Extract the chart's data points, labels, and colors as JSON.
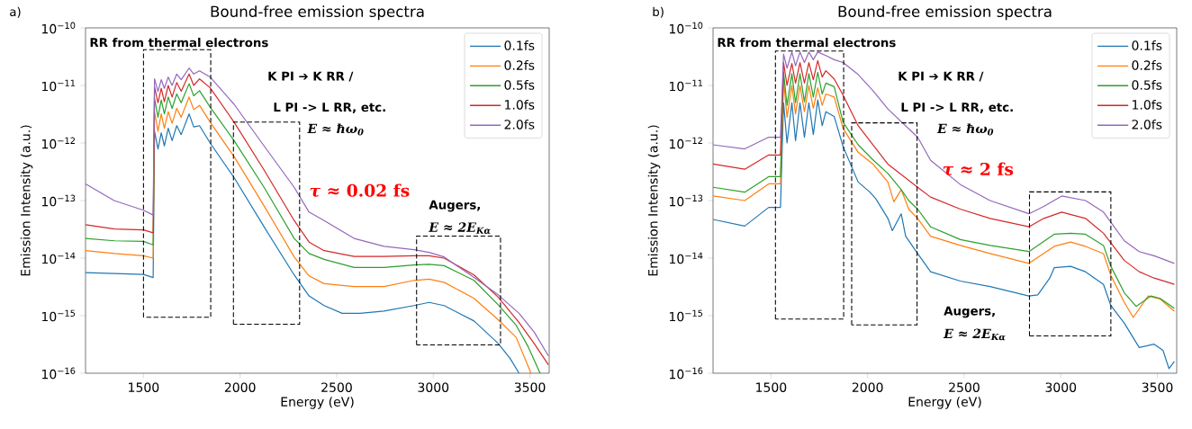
{
  "chart_data": [
    {
      "type": "line",
      "title": "Bound-free emission spectra",
      "xlabel": "Energy (eV)",
      "ylabel": "Emission Intensity (a.u.)",
      "log": true,
      "legend": "top right",
      "xlim": [
        1200,
        3600
      ],
      "xticks": [
        1500,
        2000,
        2500,
        3000,
        3500
      ],
      "ylim": [
        1e-16,
        1e-10
      ],
      "yticks": [
        {
          "value": 1e-16,
          "label": "10$^{−16}$"
        },
        {
          "value": 1e-15,
          "label": "10$^{−15}$"
        },
        {
          "value": 1e-14,
          "label": "10$^{−14}$"
        },
        {
          "value": 1e-13,
          "label": "10$^{−13}$"
        },
        {
          "value": 1e-12,
          "label": "10$^{−12}$"
        },
        {
          "value": 1e-11,
          "label": "10$^{−11}$"
        },
        {
          "value": 1e-10,
          "label": "10$^{−10}$"
        }
      ],
      "annotations": [
        "a)",
        "RR from thermal electrons",
        "K PI ➔ K RR /",
        "L PI -> L RR, etc.",
        "E ≈ ħω$_{0}$",
        "*τ* ≈ 0.02 fs",
        "Augers,",
        "E ≈ 2E$_{Kα}$"
      ],
      "series": [
        {
          "name": "0.1fs",
          "color": "#1f77b4",
          "x": [
            1200,
            1350,
            1500,
            1550,
            1557,
            1575,
            1592,
            1608,
            1628,
            1648,
            1672,
            1695,
            1736,
            1760,
            1790,
            1845,
            1969,
            2124,
            2280,
            2357,
            2435,
            2528,
            2621,
            2745,
            2900,
            2978,
            3056,
            3211,
            3336,
            3398,
            3444
          ],
          "values": [
            5.6e-15,
            5.4e-15,
            5.2e-15,
            4.6e-15,
            1.6e-12,
            7.9e-13,
            1.5e-12,
            8.9e-13,
            1.8e-12,
            1.1e-12,
            2e-12,
            1.4e-12,
            3.2e-12,
            1.9e-12,
            2e-12,
            1e-12,
            2.5e-13,
            3.5e-14,
            5.1e-15,
            2.2e-15,
            1.5e-15,
            1.1e-15,
            1.1e-15,
            1.2e-15,
            1.5e-15,
            1.7e-15,
            1.5e-15,
            8.1e-16,
            3.3e-16,
            1.8e-16,
            1e-16
          ]
        },
        {
          "name": "0.2fs",
          "color": "#ff7f0e",
          "x": [
            1200,
            1350,
            1500,
            1550,
            1557,
            1575,
            1592,
            1608,
            1628,
            1648,
            1672,
            1695,
            1736,
            1760,
            1790,
            1845,
            1969,
            2124,
            2280,
            2357,
            2435,
            2590,
            2745,
            2900,
            2978,
            3056,
            3211,
            3336,
            3429,
            3506
          ],
          "values": [
            1.35e-14,
            1.2e-14,
            1.1e-14,
            1e-14,
            3.5e-12,
            1.6e-12,
            3.2e-12,
            1.8e-12,
            3.5e-12,
            2.2e-12,
            4e-12,
            2.8e-12,
            6.3e-12,
            3.8e-12,
            4.5e-12,
            2.3e-12,
            5.8e-13,
            8.1e-14,
            1.05e-14,
            4.9e-15,
            3.6e-15,
            3.2e-15,
            3.2e-15,
            4.1e-15,
            4.3e-15,
            3.8e-15,
            2e-15,
            8.5e-16,
            4.2e-16,
            1e-16
          ]
        },
        {
          "name": "0.5fs",
          "color": "#2ca02c",
          "x": [
            1200,
            1350,
            1500,
            1550,
            1557,
            1575,
            1592,
            1608,
            1628,
            1648,
            1672,
            1695,
            1736,
            1760,
            1790,
            1845,
            1969,
            2124,
            2280,
            2357,
            2435,
            2590,
            2745,
            2900,
            2978,
            3056,
            3211,
            3336,
            3429,
            3491,
            3553
          ],
          "values": [
            2.2e-14,
            2e-14,
            1.95e-14,
            1.7e-14,
            6e-12,
            2.8e-12,
            5.6e-12,
            3.2e-12,
            6.3e-12,
            4e-12,
            7.1e-12,
            5e-12,
            1.07e-11,
            6.6e-12,
            8.1e-12,
            4.2e-12,
            1.1e-12,
            1.7e-13,
            2.2e-14,
            1.2e-14,
            9.5e-15,
            6.9e-15,
            6.9e-15,
            7.6e-15,
            7.8e-15,
            7.4e-15,
            4.1e-15,
            1.55e-15,
            6.8e-16,
            2.9e-16,
            1e-16
          ]
        },
        {
          "name": "1.0fs",
          "color": "#d62728",
          "x": [
            1200,
            1350,
            1500,
            1550,
            1557,
            1575,
            1592,
            1608,
            1628,
            1648,
            1672,
            1695,
            1736,
            1760,
            1790,
            1845,
            1969,
            2124,
            2280,
            2357,
            2435,
            2590,
            2745,
            2900,
            2978,
            3056,
            3211,
            3336,
            3444,
            3522,
            3596
          ],
          "values": [
            3.8e-14,
            3.2e-14,
            3.1e-14,
            2.75e-14,
            9.5e-12,
            5e-12,
            8.9e-12,
            5.2e-12,
            1e-11,
            6.3e-12,
            1.12e-11,
            7.9e-12,
            1.58e-11,
            1e-11,
            1.3e-11,
            9.1e-12,
            2.3e-12,
            3.4e-13,
            4.5e-14,
            1.9e-14,
            1.35e-14,
            1.07e-14,
            1.07e-14,
            1.1e-14,
            1.1e-14,
            1e-14,
            5.1e-15,
            2.1e-15,
            7.6e-16,
            3.3e-16,
            1.4e-16
          ]
        },
        {
          "name": "2.0fs",
          "color": "#9467bd",
          "x": [
            1200,
            1348,
            1500,
            1550,
            1557,
            1575,
            1592,
            1608,
            1628,
            1648,
            1672,
            1695,
            1736,
            1760,
            1790,
            1845,
            1969,
            2124,
            2280,
            2357,
            2435,
            2590,
            2745,
            2900,
            2978,
            3056,
            3211,
            3336,
            3444,
            3522,
            3596
          ],
          "values": [
            1.95e-13,
            1e-13,
            6.8e-14,
            5.6e-14,
            1.3e-11,
            7.9e-12,
            1.26e-11,
            8.9e-12,
            1.4e-11,
            1e-11,
            1.58e-11,
            1.26e-11,
            2e-11,
            1.58e-11,
            1.8e-11,
            1.4e-11,
            4.7e-12,
            8.9e-13,
            1.7e-13,
            6.3e-14,
            4.5e-14,
            2.2e-14,
            1.6e-14,
            1.4e-14,
            1.26e-14,
            1.05e-14,
            4.6e-15,
            2.3e-15,
            1.1e-15,
            5.2e-16,
            2e-16
          ]
        }
      ]
    },
    {
      "type": "line",
      "title": "Bound-free emission spectra",
      "xlabel": "Energy (eV)",
      "ylabel": "Emission Intensity (a.u.)",
      "log": true,
      "legend": "top right",
      "xlim": [
        1200,
        3600
      ],
      "xticks": [
        1500,
        2000,
        2500,
        3000,
        3500
      ],
      "ylim": [
        1e-16,
        1e-10
      ],
      "yticks": [
        {
          "value": 1e-16,
          "label": "10$^{−16}$"
        },
        {
          "value": 1e-15,
          "label": "10$^{−15}$"
        },
        {
          "value": 1e-14,
          "label": "10$^{−14}$"
        },
        {
          "value": 1e-13,
          "label": "10$^{−13}$"
        },
        {
          "value": 1e-12,
          "label": "10$^{−12}$"
        },
        {
          "value": 1e-11,
          "label": "10$^{−11}$"
        },
        {
          "value": 1e-10,
          "label": "10$^{−10}$"
        }
      ],
      "annotations": [
        "b)",
        "RR from thermal electrons",
        "K PI ➔ K RR /",
        "L PI -> L RR, etc.",
        "E ≈ ħω$_{0}$",
        "*τ* ≈ 2 fs",
        "Augers,",
        "E ≈ 2E$_{Kα}$"
      ],
      "series": [
        {
          "name": "0.1fs",
          "color": "#1f77b4",
          "x": [
            1200,
            1364,
            1488,
            1549,
            1565,
            1583,
            1608,
            1627,
            1650,
            1673,
            1696,
            1719,
            1742,
            1765,
            1784,
            1827,
            1873,
            1951,
            2012,
            2043,
            2105,
            2128,
            2174,
            2197,
            2259,
            2326,
            2480,
            2634,
            2835,
            2881,
            2943,
            2966,
            3051,
            3128,
            3221,
            3259,
            3329,
            3406,
            3483,
            3529,
            3560,
            3588
          ],
          "values": [
            4.7e-14,
            3.6e-14,
            7.6e-14,
            7.6e-14,
            5e-12,
            1e-12,
            5e-12,
            1.1e-12,
            5e-12,
            1.26e-12,
            5e-12,
            1.4e-12,
            5.6e-12,
            2e-12,
            3.5e-12,
            2.9e-12,
            8.7e-13,
            2.1e-13,
            1.4e-13,
            1.07e-13,
            4.9e-14,
            3e-14,
            5.9e-14,
            2.4e-14,
            1.2e-14,
            5.8e-15,
            4e-15,
            3.2e-15,
            2.2e-15,
            2.3e-15,
            4.5e-15,
            6.8e-15,
            7.2e-15,
            5.8e-15,
            3.5e-15,
            1.5e-15,
            7.4e-16,
            2.8e-16,
            3.2e-16,
            2.5e-16,
            1.2e-16,
            1.6e-16
          ]
        },
        {
          "name": "0.2fs",
          "color": "#ff7f0e",
          "x": [
            1200,
            1364,
            1488,
            1549,
            1565,
            1583,
            1608,
            1627,
            1650,
            1673,
            1696,
            1719,
            1742,
            1765,
            1784,
            1827,
            1873,
            1951,
            2028,
            2105,
            2136,
            2174,
            2213,
            2259,
            2326,
            2480,
            2634,
            2835,
            2966,
            3051,
            3128,
            3221,
            3259,
            3329,
            3375,
            3452,
            3514,
            3588
          ],
          "values": [
            1.2e-13,
            1e-13,
            1.95e-13,
            1.95e-13,
            1.23e-11,
            2.8e-12,
            1e-11,
            3.2e-12,
            1e-11,
            3.5e-12,
            1e-11,
            4e-12,
            9.1e-12,
            4.5e-12,
            7.1e-12,
            6.3e-12,
            1.8e-12,
            6.9e-13,
            4.3e-13,
            2.1e-13,
            9.5e-14,
            1.55e-13,
            7.1e-14,
            4.9e-14,
            2.4e-14,
            1.66e-14,
            1.2e-14,
            8.1e-15,
            1.6e-14,
            1.9e-14,
            1.6e-14,
            1.2e-14,
            5e-15,
            1.7e-15,
            9.3e-16,
            2.2e-15,
            1.95e-15,
            1.2e-15
          ]
        },
        {
          "name": "0.5fs",
          "color": "#2ca02c",
          "x": [
            1200,
            1364,
            1488,
            1549,
            1565,
            1583,
            1608,
            1627,
            1650,
            1673,
            1696,
            1719,
            1742,
            1765,
            1784,
            1827,
            1873,
            1951,
            2028,
            2105,
            2174,
            2213,
            2259,
            2326,
            2480,
            2634,
            2835,
            2966,
            3051,
            3128,
            3221,
            3259,
            3329,
            3390,
            3467,
            3514,
            3588
          ],
          "values": [
            1.7e-13,
            1.4e-13,
            2.6e-13,
            2.6e-13,
            1.7e-11,
            4.5e-12,
            1.6e-11,
            5e-12,
            1.6e-11,
            5.2e-12,
            1.6e-11,
            6.3e-12,
            1.7e-11,
            7.1e-12,
            1.1e-11,
            9.5e-12,
            2.3e-12,
            9.3e-13,
            5.1e-13,
            2.95e-13,
            1.55e-13,
            1e-13,
            7.1e-14,
            3.5e-14,
            2.1e-14,
            1.66e-14,
            1.3e-14,
            2.6e-14,
            2.7e-14,
            2.6e-14,
            1.66e-14,
            7.2e-15,
            2.5e-15,
            1.45e-15,
            2.2e-15,
            2e-15,
            1.35e-15
          ]
        },
        {
          "name": "1.0fs",
          "color": "#d62728",
          "x": [
            1200,
            1364,
            1488,
            1549,
            1565,
            1583,
            1608,
            1627,
            1650,
            1673,
            1696,
            1719,
            1742,
            1765,
            1784,
            1827,
            1873,
            1951,
            2028,
            2105,
            2259,
            2326,
            2480,
            2634,
            2835,
            2912,
            3005,
            3128,
            3221,
            3329,
            3406,
            3483,
            3588
          ],
          "values": [
            4.3e-13,
            3.5e-13,
            6.2e-13,
            6.2e-13,
            2.5e-11,
            1e-11,
            2.4e-11,
            1.1e-11,
            2.5e-11,
            1.1e-11,
            2.5e-11,
            1.26e-11,
            2.7e-11,
            1.4e-11,
            1.8e-11,
            1.3e-11,
            6.8e-12,
            2e-12,
            9.3e-13,
            4.3e-13,
            1.7e-13,
            1.15e-13,
            7.1e-14,
            4.9e-14,
            3.5e-14,
            4.9e-14,
            6.3e-14,
            4.9e-14,
            2.7e-14,
            9.1e-15,
            5.8e-15,
            4.5e-15,
            3.5e-15
          ]
        },
        {
          "name": "2.0fs",
          "color": "#9467bd",
          "x": [
            1200,
            1364,
            1488,
            1549,
            1565,
            1583,
            1608,
            1627,
            1650,
            1673,
            1696,
            1719,
            1742,
            1784,
            1827,
            1873,
            1951,
            2028,
            2105,
            2259,
            2326,
            2480,
            2634,
            2835,
            2912,
            3005,
            3128,
            3221,
            3329,
            3406,
            3483,
            3588
          ],
          "values": [
            9.3e-13,
            7.9e-13,
            1.26e-12,
            1.26e-12,
            3.5e-11,
            2e-11,
            3.8e-11,
            2.2e-11,
            3.8e-11,
            2.5e-11,
            3.8e-11,
            2.8e-11,
            3.8e-11,
            3.3e-11,
            2.8e-11,
            2.5e-11,
            1.55e-11,
            8.1e-12,
            3.9e-12,
            1.26e-12,
            5e-13,
            1.9e-13,
            1e-13,
            5.9e-14,
            7.9e-14,
            1.2e-13,
            1e-13,
            6.3e-14,
            2e-14,
            1.3e-14,
            1.1e-14,
            8.1e-15
          ]
        }
      ]
    }
  ]
}
